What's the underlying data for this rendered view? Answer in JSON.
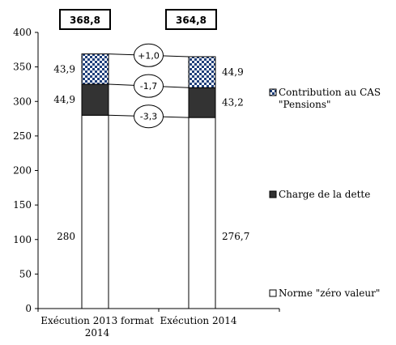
{
  "chart_data": {
    "type": "bar",
    "stacked": true,
    "categories": [
      "Exécution 2013 format 2014",
      "Exécution 2014"
    ],
    "category_label_lines": [
      [
        "Exécution 2013 format",
        "2014"
      ],
      [
        "Exécution 2014"
      ]
    ],
    "series": [
      {
        "name": "Norme \"zéro valeur\"",
        "values": [
          280,
          276.7
        ],
        "labels": [
          "280",
          "276,7"
        ],
        "pattern": "solid",
        "color": "#ffffff"
      },
      {
        "name": "Charge de la dette",
        "values": [
          44.9,
          43.2
        ],
        "labels": [
          "44,9",
          "43,2"
        ],
        "pattern": "solid",
        "color": "#333333"
      },
      {
        "name": "Contribution au CAS \"Pensions\"",
        "values": [
          43.9,
          44.9
        ],
        "labels": [
          "43,9",
          "44,9"
        ],
        "pattern": "checker",
        "color": "#1f3f7a"
      }
    ],
    "legend_lines": [
      [
        "Contribution au CAS",
        "\"Pensions\""
      ],
      [
        "Charge de la dette"
      ],
      [
        "Norme \"zéro valeur\""
      ]
    ],
    "totals": [
      "368,8",
      "364,8"
    ],
    "differences": [
      "+1,0",
      "-1,7",
      "-3,3"
    ],
    "ylim": [
      0,
      400
    ],
    "yticks": [
      0,
      50,
      100,
      150,
      200,
      250,
      300,
      350,
      400
    ],
    "legend_position": "right",
    "grid": false,
    "title": "",
    "xlabel": "",
    "ylabel": ""
  }
}
